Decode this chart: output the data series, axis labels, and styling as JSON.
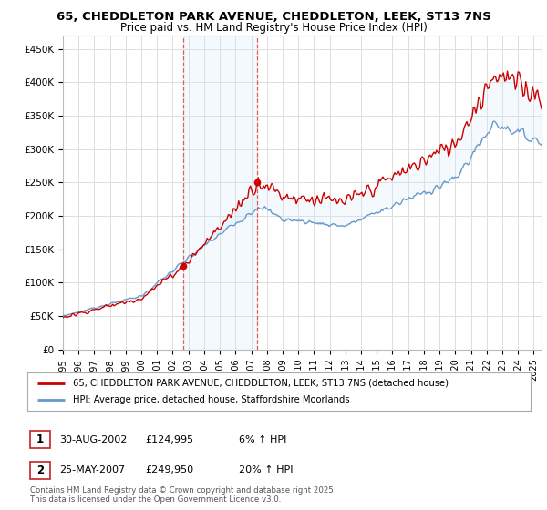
{
  "title_line1": "65, CHEDDLETON PARK AVENUE, CHEDDLETON, LEEK, ST13 7NS",
  "title_line2": "Price paid vs. HM Land Registry's House Price Index (HPI)",
  "ylabel_ticks": [
    "£0",
    "£50K",
    "£100K",
    "£150K",
    "£200K",
    "£250K",
    "£300K",
    "£350K",
    "£400K",
    "£450K"
  ],
  "ytick_values": [
    0,
    50000,
    100000,
    150000,
    200000,
    250000,
    300000,
    350000,
    400000,
    450000
  ],
  "ylim": [
    0,
    470000
  ],
  "xlim_start": 1995.0,
  "xlim_end": 2025.5,
  "purchase1_date": 2002.66,
  "purchase1_price": 124995,
  "purchase1_label": "1",
  "purchase2_date": 2007.39,
  "purchase2_price": 249950,
  "purchase2_label": "2",
  "line1_color": "#cc0000",
  "line2_color": "#6699cc",
  "shaded_color": "#d0e8f8",
  "vline_color": "#dd4444",
  "legend_line1": "65, CHEDDLETON PARK AVENUE, CHEDDLETON, LEEK, ST13 7NS (detached house)",
  "legend_line2": "HPI: Average price, detached house, Staffordshire Moorlands",
  "footnote": "Contains HM Land Registry data © Crown copyright and database right 2025.\nThis data is licensed under the Open Government Licence v3.0.",
  "bg_color": "#ffffff",
  "grid_color": "#dddddd"
}
